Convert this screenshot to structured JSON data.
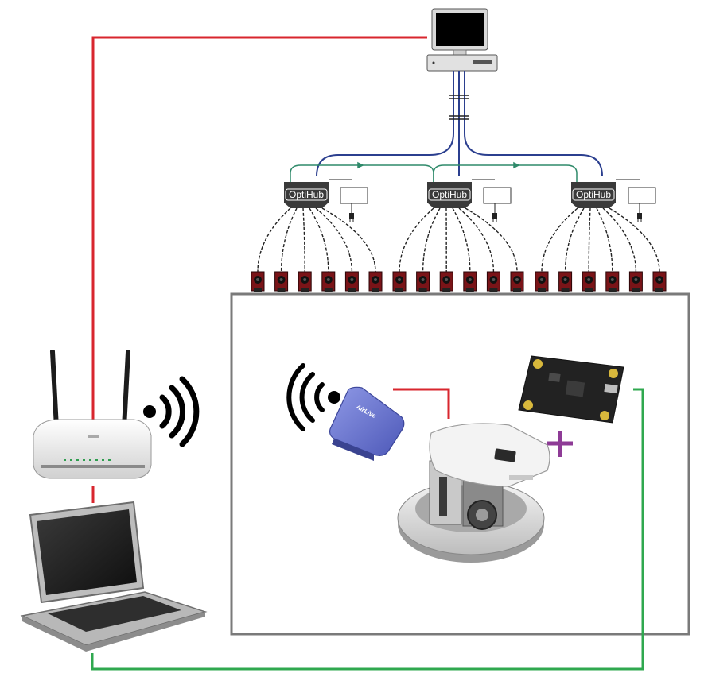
{
  "hubs": [
    {
      "label": "OptiHub"
    },
    {
      "label": "OptiHub"
    },
    {
      "label": "OptiHub"
    }
  ],
  "access_point": {
    "brand": "AirLive"
  },
  "colors": {
    "ethernet": "#d8262e",
    "usb": "#2fa84f",
    "hub_cable": "#2b3f8f",
    "sync_cable": "#2f8a6a",
    "camera_cable": "#222222",
    "plus_sign": "#8e3b96",
    "tracking_area_border": "#7a7a7a",
    "camera_body": "#7a1418"
  },
  "icons": [
    "desktop-computer-icon",
    "router-icon",
    "laptop-icon",
    "wifi-signal-icon",
    "wireless-access-point-icon",
    "robot-icon",
    "sensor-board-icon",
    "power-plug-icon",
    "motion-capture-camera-icon"
  ]
}
